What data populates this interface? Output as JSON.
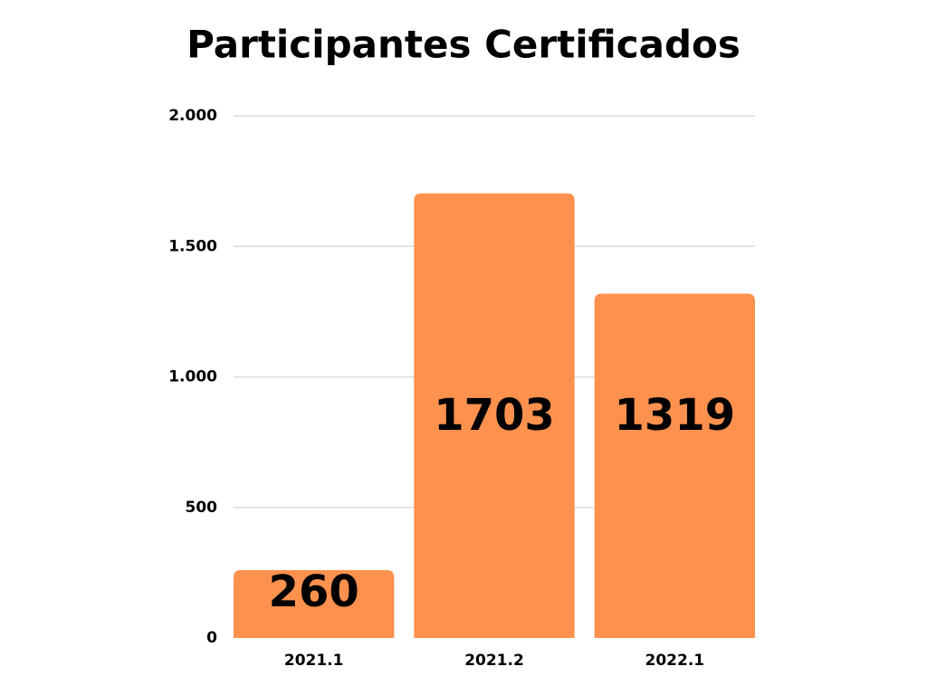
{
  "chart_data": {
    "type": "bar",
    "title": "Participantes Certificados",
    "categories": [
      "2021.1",
      "2021.2",
      "2022.1"
    ],
    "values": [
      260,
      1703,
      1319
    ],
    "color": "#fe914e",
    "ylim": [
      0,
      2000
    ],
    "yticks": [
      0,
      500,
      {
        "value": 1000,
        "label": "1.000"
      },
      {
        "value": 1500,
        "label": "1.500"
      },
      {
        "value": 2000,
        "label": "2.000"
      }
    ],
    "grid": true
  }
}
